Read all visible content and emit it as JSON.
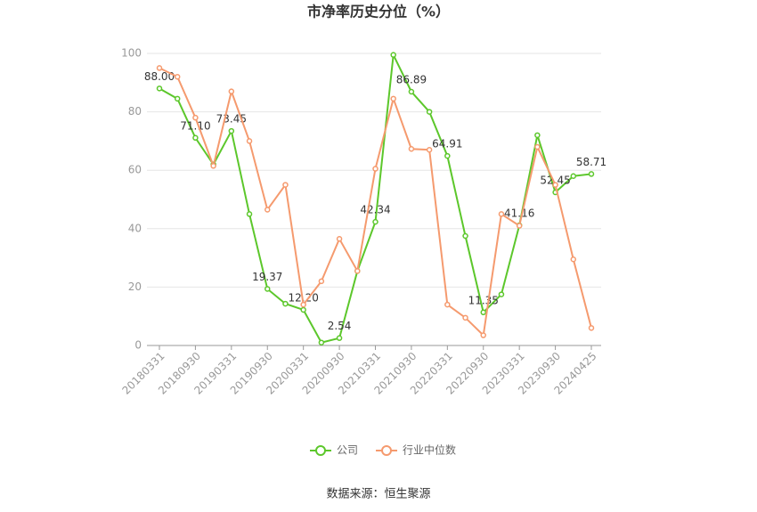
{
  "chart_data": {
    "type": "line",
    "title": "市净率历史分位（%）",
    "source": "数据来源：恒生聚源",
    "categories": [
      "20180331",
      null,
      "20180930",
      null,
      "20190331",
      null,
      "20190930",
      null,
      "20200331",
      null,
      "20200930",
      null,
      "20210331",
      null,
      "20210930",
      null,
      "20220331",
      null,
      "20220930",
      null,
      "20230331",
      null,
      "20230930",
      null,
      "20240425"
    ],
    "ylim": [
      0,
      100
    ],
    "yticks": [
      0,
      20,
      40,
      60,
      80,
      100
    ],
    "grid": true,
    "legend": "bottom",
    "series": [
      {
        "name": "公司",
        "color": "#5cc72b",
        "values": [
          88.0,
          84.5,
          71.1,
          62,
          73.45,
          45,
          19.37,
          14.3,
          12.2,
          1,
          2.54,
          25.5,
          42.34,
          99.5,
          86.89,
          80,
          64.91,
          37.5,
          11.35,
          17.5,
          41.16,
          72,
          52.45,
          58,
          58.71
        ],
        "value_labels": [
          "88.00",
          null,
          "71.10",
          null,
          "73.45",
          null,
          "19.37",
          null,
          "12.20",
          null,
          "2.54",
          null,
          "42.34",
          null,
          "86.89",
          null,
          "64.91",
          null,
          "11.35",
          null,
          "41.16",
          null,
          "52.45",
          null,
          "58.71"
        ]
      },
      {
        "name": "行业中位数",
        "color": "#f59a6e",
        "values": [
          95,
          92,
          78,
          61.5,
          87,
          70,
          46.5,
          55,
          14,
          22,
          36.5,
          25.5,
          60.5,
          84.5,
          67.3,
          67,
          14,
          9.5,
          3.5,
          45,
          41,
          68,
          55,
          29.5,
          6
        ]
      }
    ]
  }
}
